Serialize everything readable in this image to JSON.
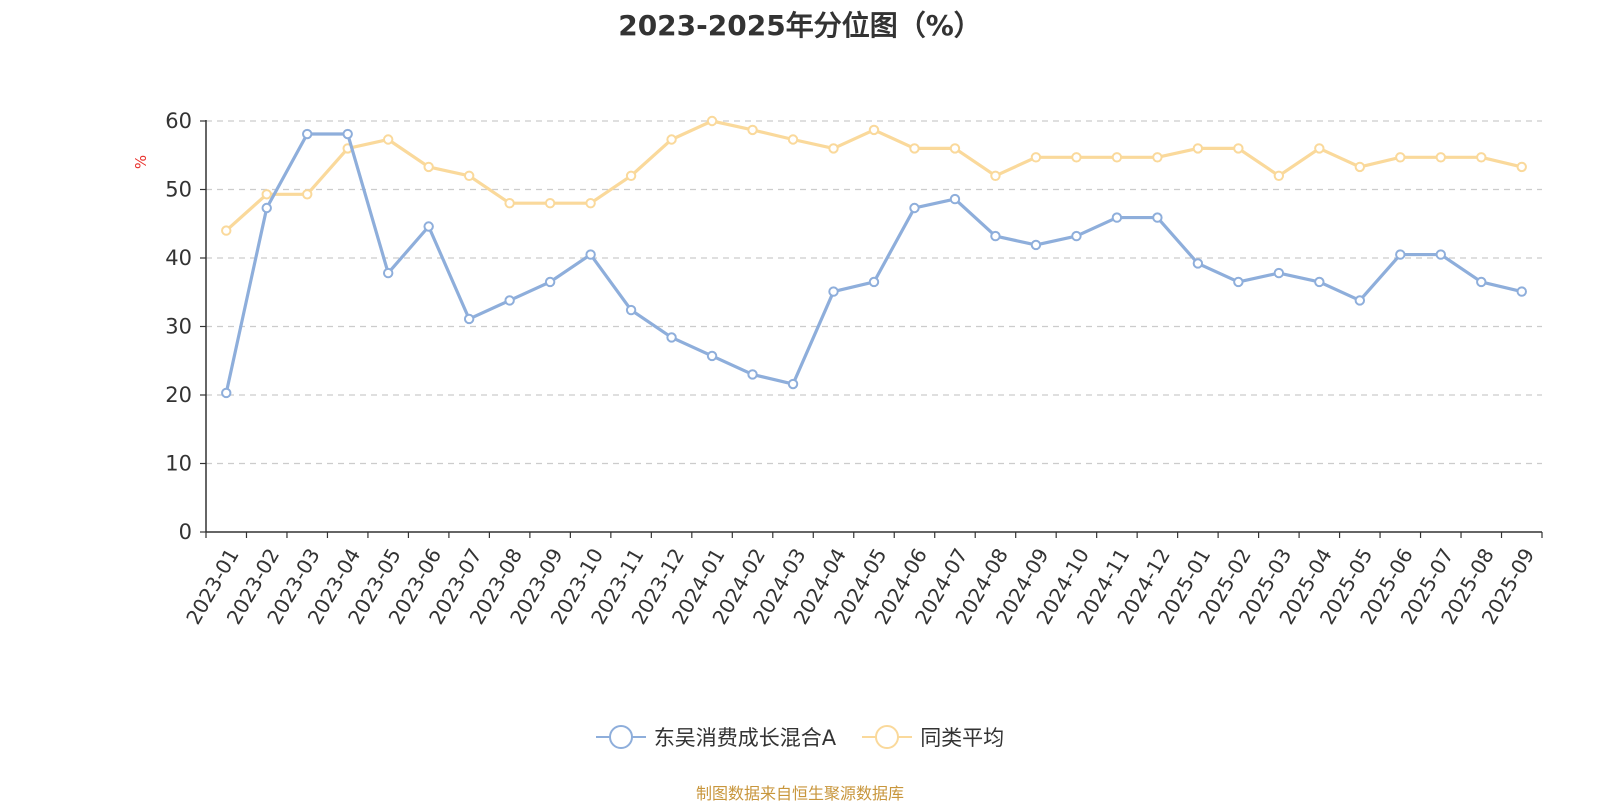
{
  "chart_data": {
    "type": "line",
    "title": "2023-2025年分位图（%）",
    "ylabel": "%",
    "xlabel": "",
    "ylim": [
      0,
      60
    ],
    "yticks": [
      0,
      10,
      20,
      30,
      40,
      50,
      60
    ],
    "grid": true,
    "legend_position": "bottom-center",
    "categories": [
      "2023-01",
      "2023-02",
      "2023-03",
      "2023-04",
      "2023-05",
      "2023-06",
      "2023-07",
      "2023-08",
      "2023-09",
      "2023-10",
      "2023-11",
      "2023-12",
      "2024-01",
      "2024-02",
      "2024-03",
      "2024-04",
      "2024-05",
      "2024-06",
      "2024-07",
      "2024-08",
      "2024-09",
      "2024-10",
      "2024-11",
      "2024-12",
      "2025-01",
      "2025-02",
      "2025-03",
      "2025-04",
      "2025-05",
      "2025-06",
      "2025-07",
      "2025-08",
      "2025-09"
    ],
    "series": [
      {
        "name": "东吴消费成长混合A",
        "color": "#8eaedb",
        "values": [
          20.3,
          47.3,
          58.1,
          58.1,
          37.8,
          44.6,
          31.1,
          33.8,
          36.5,
          40.5,
          32.4,
          28.4,
          25.7,
          23.0,
          21.6,
          35.1,
          36.5,
          47.3,
          48.6,
          43.2,
          41.9,
          43.2,
          45.9,
          45.9,
          39.2,
          36.5,
          37.8,
          36.5,
          33.8,
          40.5,
          40.5,
          36.5,
          35.1
        ]
      },
      {
        "name": "同类平均",
        "color": "#fad99b",
        "values": [
          44.0,
          49.3,
          49.3,
          56.0,
          57.3,
          53.3,
          52.0,
          48.0,
          48.0,
          48.0,
          52.0,
          57.3,
          60.0,
          58.7,
          57.3,
          56.0,
          58.7,
          56.0,
          56.0,
          52.0,
          54.7,
          54.7,
          54.7,
          54.7,
          56.0,
          56.0,
          52.0,
          56.0,
          53.3,
          54.7,
          54.7,
          54.7,
          53.3
        ]
      }
    ]
  },
  "colors": {
    "ylabel": "#e8322d",
    "source": "#c8963c",
    "grid": "#cccccc",
    "axis": "#333333"
  },
  "source_text": "制图数据来自恒生聚源数据库"
}
